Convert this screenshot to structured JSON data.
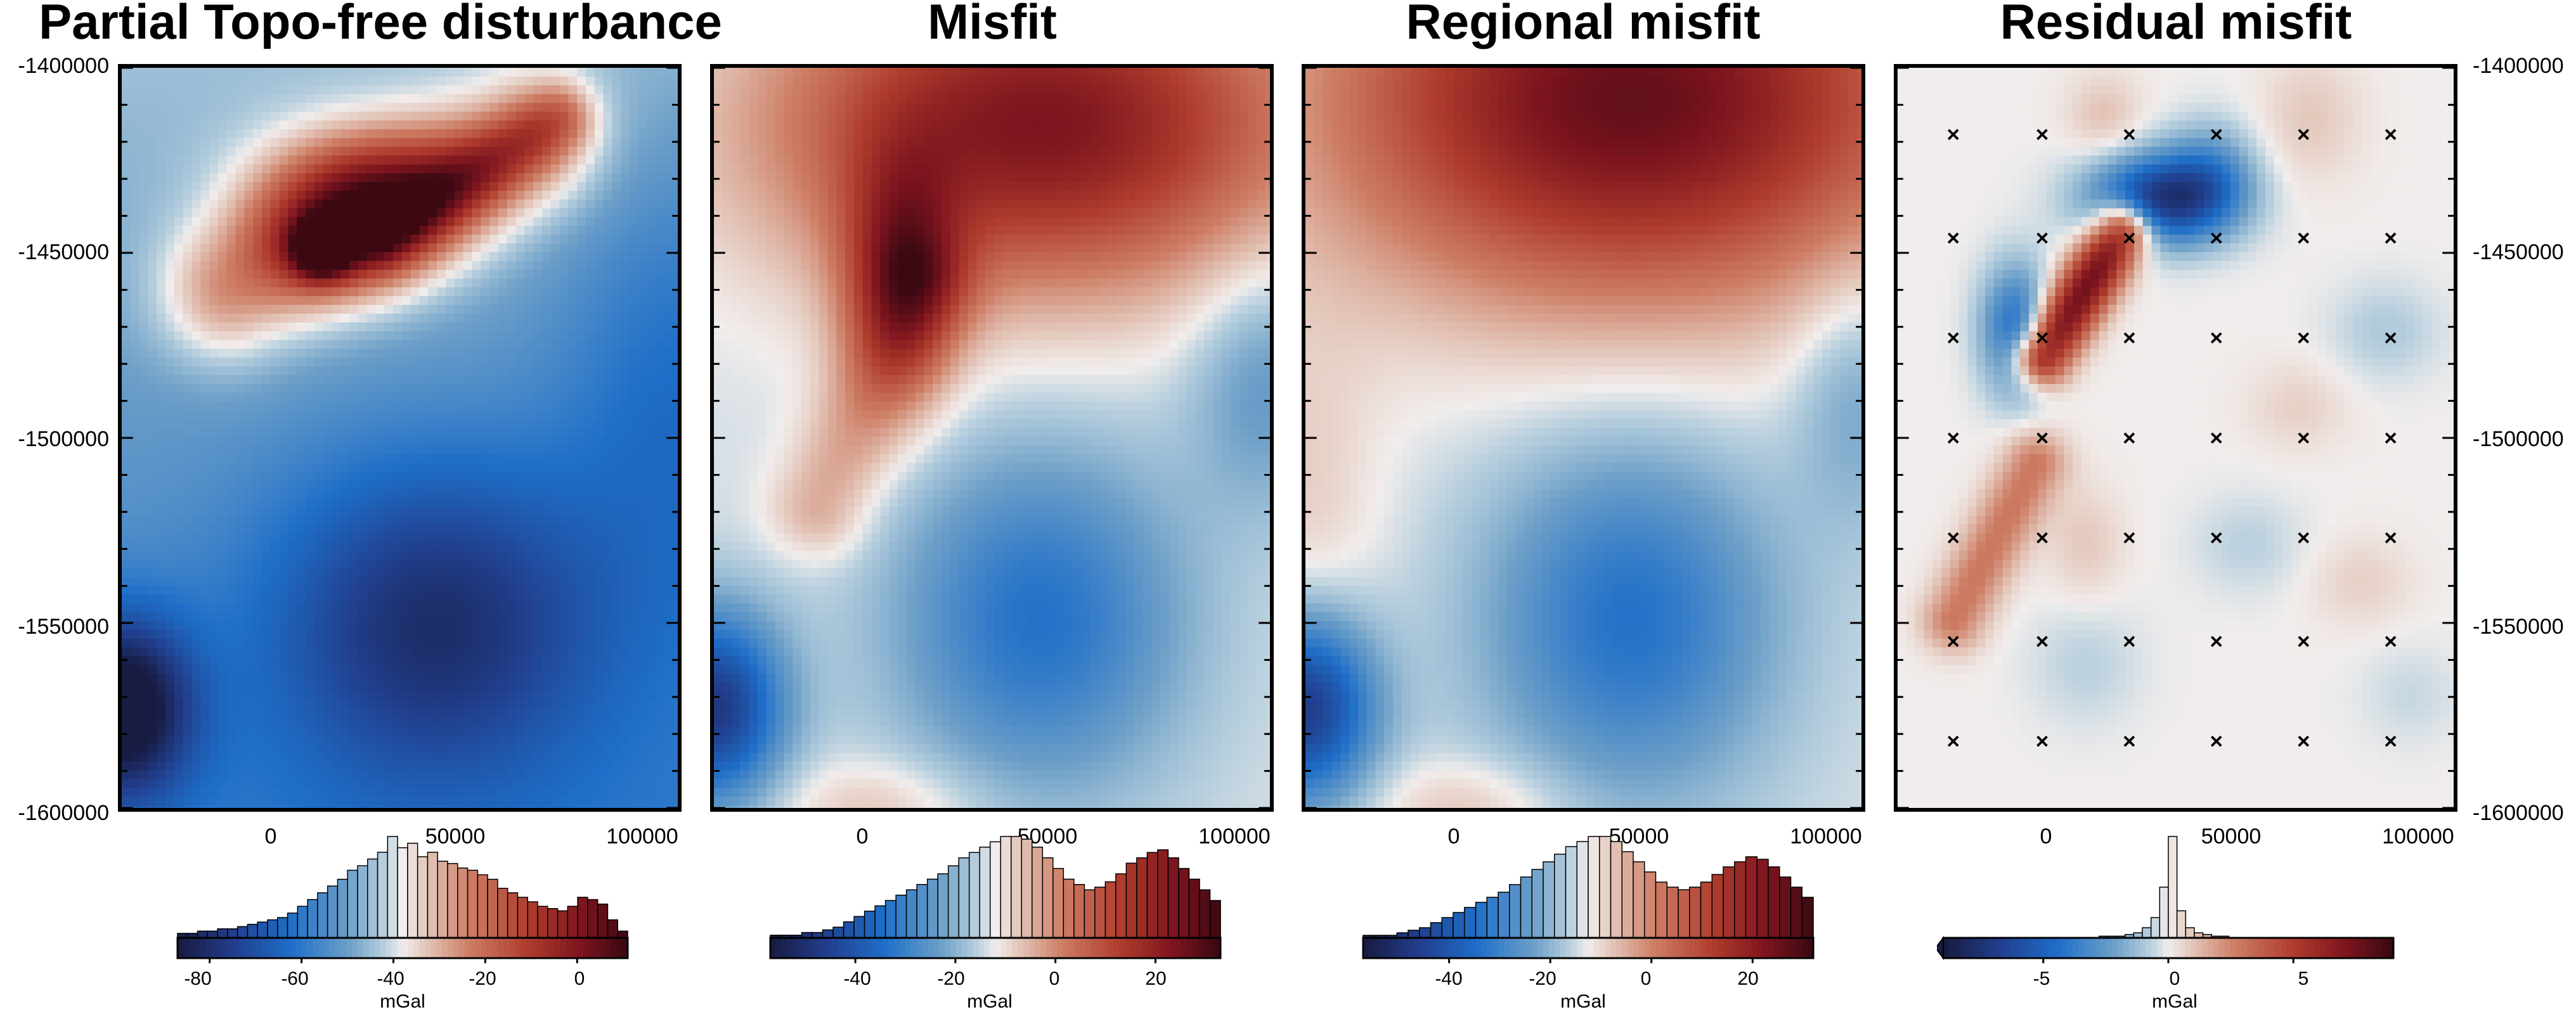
{
  "chart_data": [
    {
      "type": "heatmap",
      "title": "Partial Topo-free disturbance",
      "colormap": "balance (blue-white-red)",
      "x_ticks": [
        "0",
        "50000",
        "100000"
      ],
      "y_ticks": [
        "-1400000",
        "-1450000",
        "-1500000",
        "-1550000",
        "-1600000"
      ],
      "y_axis_side": "left",
      "xlim": [
        -40000,
        110000
      ],
      "ylim": [
        -1600000,
        -1400000
      ],
      "field_features": [
        {
          "kind": "high",
          "x": 20000,
          "y": -1447000,
          "value": 10
        },
        {
          "kind": "ridge",
          "from": [
            25000,
            -1438000
          ],
          "to": [
            85000,
            -1415000
          ],
          "value": 4
        },
        {
          "kind": "low",
          "x": 52000,
          "y": -1535000,
          "value": -55
        },
        {
          "kind": "low",
          "x": -38000,
          "y": -1575000,
          "value": -85
        }
      ],
      "colorbar": {
        "label": "mGal",
        "ticks": [
          "-80",
          "-60",
          "-40",
          "-20",
          "0"
        ],
        "range": [
          -87,
          11
        ],
        "histogram": [
          2,
          2,
          3,
          3,
          4,
          4,
          5,
          6,
          7,
          8,
          9,
          11,
          14,
          17,
          20,
          23,
          26,
          30,
          32,
          35,
          38,
          45,
          40,
          42,
          36,
          38,
          34,
          33,
          31,
          30,
          28,
          26,
          22,
          20,
          18,
          16,
          14,
          13,
          12,
          14,
          18,
          17,
          15,
          8,
          3
        ]
      }
    },
    {
      "type": "heatmap",
      "title": "Misfit",
      "colormap": "balance (blue-white-red)",
      "x_ticks": [
        "0",
        "50000",
        "100000"
      ],
      "y_axis_side": "none",
      "xlim": [
        -40000,
        110000
      ],
      "ylim": [
        -1600000,
        -1400000
      ],
      "field_features": [
        {
          "kind": "high",
          "x": 45000,
          "y": -1410000,
          "value": 30
        },
        {
          "kind": "high",
          "x": 15000,
          "y": -1455000,
          "value": 28
        },
        {
          "kind": "low",
          "x": 50000,
          "y": -1540000,
          "value": -45
        },
        {
          "kind": "low",
          "x": -38000,
          "y": -1575000,
          "value": -55
        }
      ],
      "colorbar": {
        "label": "mGal",
        "ticks": [
          "-40",
          "-20",
          "0",
          "20"
        ],
        "range": [
          -57,
          33
        ],
        "histogram": [
          1,
          1,
          1,
          2,
          2,
          3,
          4,
          6,
          8,
          10,
          12,
          14,
          16,
          18,
          20,
          22,
          24,
          27,
          30,
          32,
          34,
          36,
          38,
          38,
          37,
          34,
          30,
          26,
          22,
          20,
          18,
          19,
          21,
          24,
          28,
          30,
          32,
          33,
          30,
          26,
          22,
          18,
          14
        ]
      }
    },
    {
      "type": "heatmap",
      "title": "Regional misfit",
      "colormap": "balance (blue-white-red)",
      "x_ticks": [
        "0",
        "50000",
        "100000"
      ],
      "y_axis_side": "none",
      "xlim": [
        -40000,
        110000
      ],
      "ylim": [
        -1600000,
        -1400000
      ],
      "field_features": [
        {
          "kind": "high",
          "x": 45000,
          "y": -1405000,
          "value": 30
        },
        {
          "kind": "low",
          "x": 50000,
          "y": -1540000,
          "value": -45
        },
        {
          "kind": "low",
          "x": -38000,
          "y": -1575000,
          "value": -55
        }
      ],
      "colorbar": {
        "label": "mGal",
        "ticks": [
          "-40",
          "-20",
          "0",
          "20"
        ],
        "range": [
          -57,
          32
        ],
        "histogram": [
          1,
          1,
          1,
          2,
          3,
          4,
          6,
          8,
          10,
          12,
          14,
          16,
          18,
          21,
          24,
          27,
          30,
          33,
          36,
          38,
          40,
          40,
          38,
          34,
          30,
          26,
          22,
          20,
          19,
          20,
          22,
          25,
          28,
          30,
          32,
          31,
          28,
          24,
          20,
          16
        ]
      }
    },
    {
      "type": "heatmap",
      "title": "Residual misfit",
      "colormap": "balance (blue-white-red)",
      "x_ticks": [
        "0",
        "50000",
        "100000"
      ],
      "y_ticks": [
        "-1400000",
        "-1450000",
        "-1500000",
        "-1550000",
        "-1600000"
      ],
      "y_axis_side": "right",
      "xlim": [
        -40000,
        110000
      ],
      "ylim": [
        -1600000,
        -1400000
      ],
      "field_features": [
        {
          "kind": "high",
          "x": 10000,
          "y": -1465000,
          "value": 9
        },
        {
          "kind": "low",
          "x": 30000,
          "y": -1433000,
          "value": -9
        },
        {
          "kind": "low",
          "x": -10000,
          "y": -1470000,
          "value": -6
        },
        {
          "kind": "high",
          "x": -20000,
          "y": -1525000,
          "value": 4
        }
      ],
      "markers": {
        "symbol": "×",
        "x": [
          -25000,
          -1000,
          22500,
          46000,
          69500,
          93000
        ],
        "y": [
          -1418000,
          -1446000,
          -1473000,
          -1500000,
          -1527000,
          -1555000,
          -1582000
        ]
      },
      "colorbar": {
        "label": "mGal",
        "ticks": [
          "-5",
          "0",
          "5"
        ],
        "range": [
          -9,
          9
        ],
        "extend": "min",
        "histogram": [
          0,
          0,
          0,
          0,
          0,
          0,
          0,
          0,
          0,
          0,
          0,
          0,
          0,
          0,
          0,
          0,
          0,
          0,
          1,
          1,
          1,
          2,
          3,
          6,
          12,
          30,
          60,
          16,
          6,
          3,
          2,
          1,
          1,
          0,
          0,
          0,
          0,
          0,
          0,
          0,
          0,
          0,
          0,
          0,
          0,
          0,
          0,
          0,
          0,
          0,
          0,
          0
        ]
      }
    }
  ]
}
